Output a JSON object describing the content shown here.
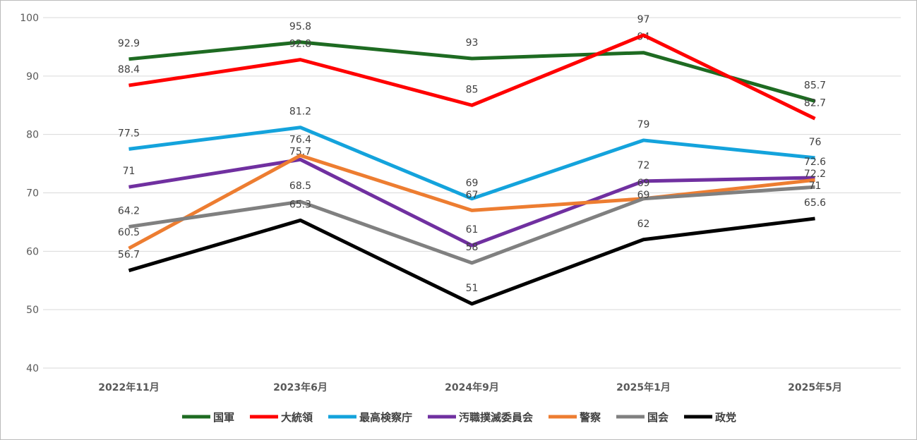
{
  "chart_data": {
    "type": "line",
    "title": "",
    "xlabel": "",
    "ylabel": "",
    "ylim": [
      40,
      100
    ],
    "yticks": [
      "40",
      "50",
      "60",
      "70",
      "80",
      "90",
      "100"
    ],
    "categories": [
      "2022年11月",
      "2023年6月",
      "2024年9月",
      "2025年1月",
      "2025年5月"
    ],
    "grid": true,
    "legend_position": "bottom",
    "series": [
      {
        "name": "国軍",
        "color": "#1e6b22",
        "values": [
          92.9,
          95.8,
          93,
          94,
          85.7
        ],
        "labels": [
          "92.9",
          "95.8",
          "93",
          "94",
          "85.7"
        ]
      },
      {
        "name": "大統領",
        "color": "#ff0000",
        "values": [
          88.4,
          92.8,
          85,
          97,
          82.7
        ],
        "labels": [
          "88.4",
          "92.8",
          "85",
          "97",
          "82.7"
        ]
      },
      {
        "name": "最高検察庁",
        "color": "#14a3dc",
        "values": [
          77.5,
          81.2,
          69,
          79,
          76
        ],
        "labels": [
          "77.5",
          "81.2",
          "69",
          "79",
          "76"
        ]
      },
      {
        "name": "汚職撲滅委員会",
        "color": "#7030a0",
        "values": [
          71,
          75.7,
          61,
          72,
          72.6
        ],
        "labels": [
          "71",
          "75.7",
          "61",
          "72",
          "72.6"
        ]
      },
      {
        "name": "警察",
        "color": "#ed7d31",
        "values": [
          60.5,
          76.4,
          67,
          69,
          72.2
        ],
        "labels": [
          "60.5",
          "76.4",
          "67",
          "69",
          "72.2"
        ]
      },
      {
        "name": "国会",
        "color": "#808080",
        "values": [
          64.2,
          68.5,
          58,
          69,
          71
        ],
        "labels": [
          "64.2",
          "68.5",
          "58",
          "69",
          "71"
        ]
      },
      {
        "name": "政党",
        "color": "#000000",
        "values": [
          56.7,
          65.3,
          51,
          62,
          65.6
        ],
        "labels": [
          "56.7",
          "65.3",
          "51",
          "62",
          "65.6"
        ]
      }
    ]
  }
}
